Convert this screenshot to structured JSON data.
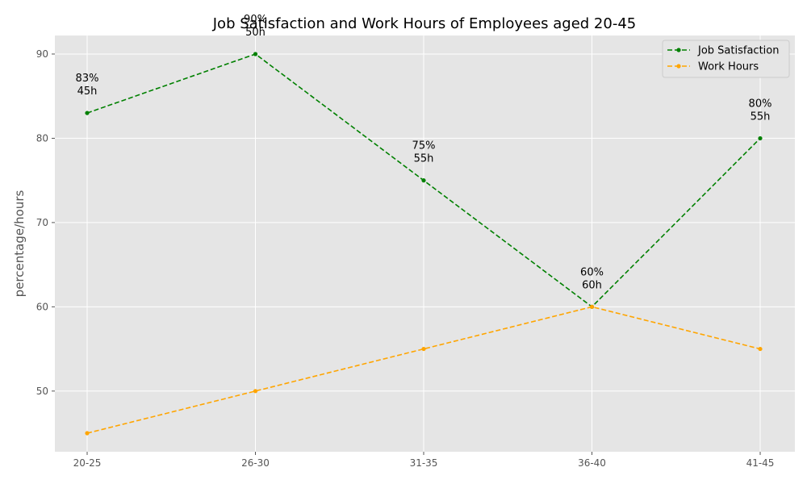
{
  "chart_data": {
    "type": "line",
    "title": "Job Satisfaction and Work Hours of Employees aged 20-45",
    "xlabel": "",
    "ylabel": "percentage/hours",
    "categories": [
      "20-25",
      "26-30",
      "31-35",
      "36-40",
      "41-45"
    ],
    "ylim": [
      42.8,
      92.2
    ],
    "yticks": [
      50,
      60,
      70,
      80,
      90
    ],
    "grid": true,
    "legend_position": "top-right",
    "series": [
      {
        "name": "Job Satisfaction",
        "values": [
          83,
          90,
          75,
          60,
          80
        ],
        "color": "#008000",
        "line_style": "dashed",
        "marker": "circle"
      },
      {
        "name": "Work Hours",
        "values": [
          45,
          50,
          55,
          60,
          55
        ],
        "color": "#FFA500",
        "line_style": "dashed",
        "marker": "circle"
      }
    ],
    "annotations": [
      {
        "line1": "83%",
        "line2": "45h"
      },
      {
        "line1": "90%",
        "line2": "50h"
      },
      {
        "line1": "75%",
        "line2": "55h"
      },
      {
        "line1": "60%",
        "line2": "60h"
      },
      {
        "line1": "80%",
        "line2": "55h"
      }
    ]
  }
}
